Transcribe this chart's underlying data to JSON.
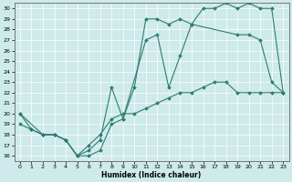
{
  "xlabel": "Humidex (Indice chaleur)",
  "ylabel": "",
  "xlim": [
    -0.5,
    23.5
  ],
  "ylim": [
    15.5,
    30.5
  ],
  "xticks": [
    0,
    1,
    2,
    3,
    4,
    5,
    6,
    7,
    8,
    9,
    10,
    11,
    12,
    13,
    14,
    15,
    16,
    17,
    18,
    19,
    20,
    21,
    22,
    23
  ],
  "yticks": [
    16,
    17,
    18,
    19,
    20,
    21,
    22,
    23,
    24,
    25,
    26,
    27,
    28,
    29,
    30
  ],
  "line_color": "#2e7d6e",
  "background_color": "#ceeaea",
  "line1_x": [
    0,
    1,
    2,
    3,
    4,
    5,
    6,
    7,
    8,
    9,
    10,
    11,
    12,
    13,
    14,
    15,
    16,
    17,
    18,
    19,
    20,
    21,
    22,
    23
  ],
  "line1_y": [
    20,
    18.5,
    18,
    18,
    17.5,
    16,
    16,
    16.5,
    19,
    19.5,
    22.5,
    29,
    29,
    28.5,
    29,
    28.5,
    30,
    30,
    30.5,
    30,
    30.5,
    30,
    30,
    22
  ],
  "line2_x": [
    0,
    2,
    3,
    4,
    5,
    6,
    7,
    8,
    9,
    11,
    12,
    13,
    14,
    15,
    19,
    20,
    21,
    22,
    23
  ],
  "line2_y": [
    20,
    18,
    18,
    17.5,
    16,
    16.5,
    17.5,
    22.5,
    19.5,
    27,
    27.5,
    22.5,
    25.5,
    28.5,
    27.5,
    27.5,
    27,
    23,
    22
  ],
  "line3_x": [
    0,
    1,
    2,
    3,
    4,
    5,
    6,
    7,
    8,
    9,
    10,
    11,
    12,
    13,
    14,
    15,
    16,
    17,
    18,
    19,
    20,
    21,
    22,
    23
  ],
  "line3_y": [
    19,
    18.5,
    18,
    18,
    17.5,
    16,
    17,
    18,
    19.5,
    20,
    20,
    20.5,
    21,
    21.5,
    22,
    22,
    22.5,
    23,
    23,
    22,
    22,
    22,
    22,
    22
  ]
}
